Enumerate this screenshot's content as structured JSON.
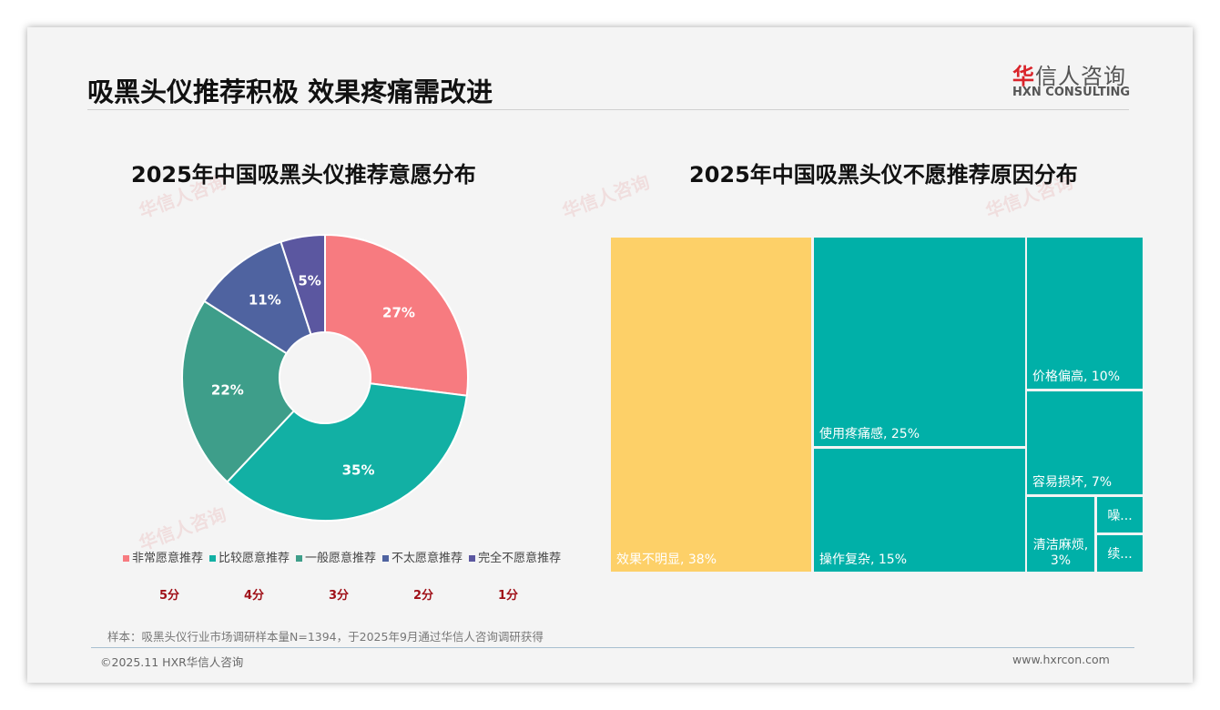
{
  "header": {
    "title": "吸黑头仪推荐积极 效果疼痛需改进",
    "logo_cn_red": "华",
    "logo_cn": "信人咨询",
    "logo_en": "HXN CONSULTING"
  },
  "chart_data": [
    {
      "type": "pie",
      "title": "2025年中国吸黑头仪推荐意愿分布",
      "categories": [
        "非常愿意推荐",
        "比较愿意推荐",
        "一般愿意推荐",
        "不太愿意推荐",
        "完全不愿意推荐"
      ],
      "values": [
        27,
        35,
        22,
        11,
        5
      ],
      "labels": [
        "27%",
        "35%",
        "22%",
        "11%",
        "5%"
      ],
      "colors": [
        "#F77B80",
        "#12B0A4",
        "#3E9E8A",
        "#4F63A0",
        "#5B57A0"
      ],
      "scores": [
        "5分",
        "4分",
        "3分",
        "2分",
        "1分"
      ],
      "legend": "bottom"
    },
    {
      "type": "treemap",
      "title": "2025年中国吸黑头仪不愿推荐原因分布",
      "items": [
        {
          "label": "效果不明显, 38%",
          "value": 38,
          "color": "#FDD068"
        },
        {
          "label": "使用疼痛感, 25%",
          "value": 25,
          "color": "#00B0A8"
        },
        {
          "label": "操作复杂, 15%",
          "value": 15,
          "color": "#00B0A8"
        },
        {
          "label": "价格偏高, 10%",
          "value": 10,
          "color": "#00B0A8"
        },
        {
          "label": "容易损坏, 7%",
          "value": 7,
          "color": "#00B0A8"
        },
        {
          "label": "清洁麻烦, 3%",
          "value": 3,
          "color": "#00B0A8"
        },
        {
          "label": "噪...",
          "value": 1,
          "color": "#00B0A8"
        },
        {
          "label": "续...",
          "value": 1,
          "color": "#00B0A8"
        }
      ]
    }
  ],
  "footer": {
    "note": "样本：吸黑头仪行业市场调研样本量N=1394，于2025年9月通过华信人咨询调研获得",
    "copyright": "©2025.11 HXR华信人咨询",
    "url": "www.hxrcon.com"
  },
  "watermark": "华信人咨询"
}
